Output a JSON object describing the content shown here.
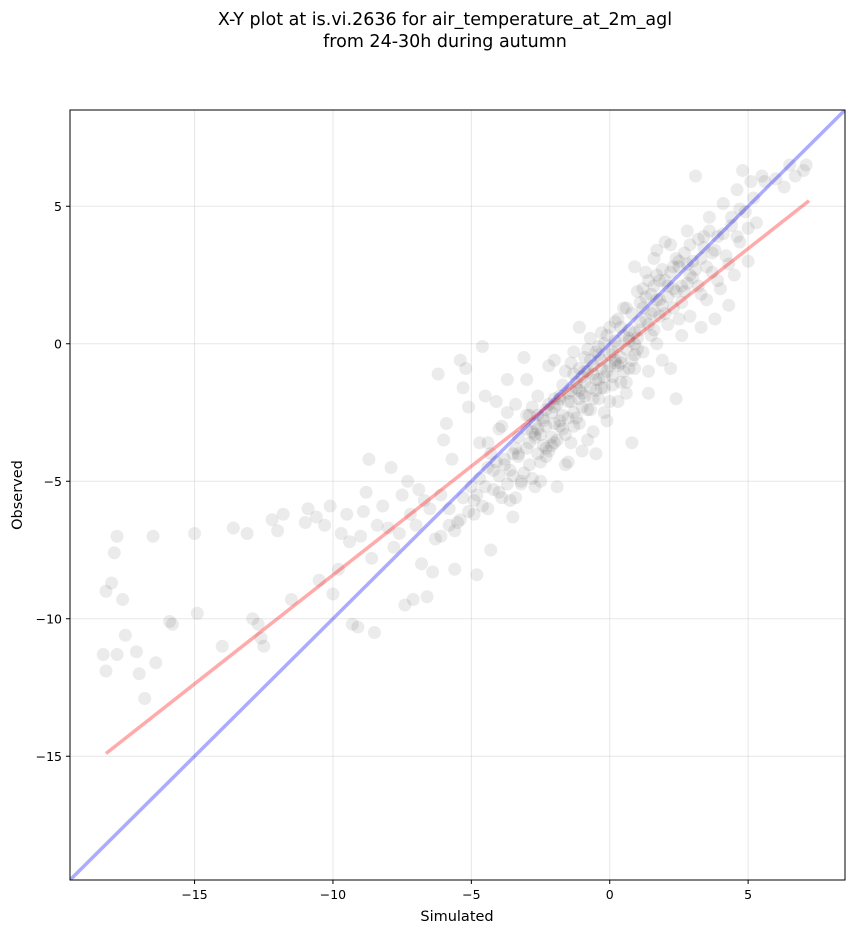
{
  "chart_data": {
    "type": "scatter",
    "title_line1": "X-Y plot at is.vi.2636 for air_temperature_at_2m_agl",
    "title_line2": "from 24-30h during autumn",
    "xlabel": "Simulated",
    "ylabel": "Observed",
    "xlim": [
      -19.5,
      8.5
    ],
    "ylim": [
      -19.5,
      8.5
    ],
    "xticks": [
      -15,
      -10,
      -5,
      0,
      5
    ],
    "xtick_labels": [
      "−15",
      "−10",
      "−5",
      "0",
      "5"
    ],
    "yticks": [
      -15,
      -10,
      -5,
      0,
      5
    ],
    "ytick_labels": [
      "−15",
      "−10",
      "−5",
      "0",
      "5"
    ],
    "grid": true,
    "point_color": "#000000",
    "point_alpha": 0.08,
    "identity_line": {
      "color": "#0000ff",
      "alpha": 0.33,
      "x": [
        -19.5,
        8.5
      ],
      "y": [
        -19.5,
        8.5
      ]
    },
    "fit_line": {
      "color": "#ff0000",
      "alpha": 0.33,
      "x": [
        -18.2,
        7.2
      ],
      "y": [
        -14.9,
        5.2
      ]
    },
    "points": [
      [
        -18.2,
        -9.0
      ],
      [
        -18.0,
        -8.7
      ],
      [
        -17.8,
        -7.0
      ],
      [
        -17.9,
        -7.6
      ],
      [
        -17.6,
        -9.3
      ],
      [
        -18.3,
        -11.3
      ],
      [
        -18.2,
        -11.9
      ],
      [
        -17.8,
        -11.3
      ],
      [
        -17.5,
        -10.6
      ],
      [
        -17.1,
        -11.2
      ],
      [
        -17.0,
        -12.0
      ],
      [
        -16.8,
        -12.9
      ],
      [
        -16.4,
        -11.6
      ],
      [
        -16.5,
        -7.0
      ],
      [
        -15.9,
        -10.1
      ],
      [
        -15.8,
        -10.2
      ],
      [
        -15.0,
        -6.9
      ],
      [
        -14.9,
        -9.8
      ],
      [
        -14.0,
        -11.0
      ],
      [
        -13.6,
        -6.7
      ],
      [
        -13.1,
        -6.9
      ],
      [
        -12.9,
        -10.0
      ],
      [
        -12.7,
        -10.2
      ],
      [
        -12.6,
        -10.7
      ],
      [
        -12.5,
        -11.0
      ],
      [
        -12.2,
        -6.4
      ],
      [
        -12.0,
        -6.8
      ],
      [
        -11.8,
        -6.2
      ],
      [
        -11.5,
        -9.3
      ],
      [
        -11.0,
        -6.5
      ],
      [
        -10.9,
        -6.0
      ],
      [
        -10.6,
        -6.3
      ],
      [
        -10.5,
        -8.6
      ],
      [
        -10.3,
        -6.6
      ],
      [
        -10.1,
        -5.9
      ],
      [
        -10.0,
        -9.1
      ],
      [
        -9.8,
        -8.2
      ],
      [
        -9.7,
        -6.9
      ],
      [
        -9.5,
        -6.2
      ],
      [
        -9.4,
        -7.2
      ],
      [
        -9.3,
        -10.2
      ],
      [
        -9.1,
        -10.3
      ],
      [
        -9.0,
        -7.0
      ],
      [
        -8.9,
        -6.1
      ],
      [
        -8.8,
        -5.4
      ],
      [
        -8.7,
        -4.2
      ],
      [
        -8.6,
        -7.8
      ],
      [
        -8.5,
        -10.5
      ],
      [
        -8.4,
        -6.6
      ],
      [
        -8.2,
        -5.9
      ],
      [
        -8.0,
        -6.7
      ],
      [
        -7.9,
        -4.5
      ],
      [
        -7.8,
        -7.4
      ],
      [
        -7.6,
        -6.9
      ],
      [
        -7.5,
        -5.5
      ],
      [
        -7.4,
        -9.5
      ],
      [
        -7.3,
        -5.0
      ],
      [
        -7.2,
        -6.2
      ],
      [
        -7.1,
        -9.3
      ],
      [
        -7.0,
        -6.6
      ],
      [
        -6.9,
        -5.3
      ],
      [
        -6.8,
        -8.0
      ],
      [
        -6.7,
        -5.7
      ],
      [
        -6.6,
        -9.2
      ],
      [
        -6.5,
        -6.0
      ],
      [
        -6.4,
        -8.3
      ],
      [
        -6.3,
        -7.1
      ],
      [
        -6.2,
        -1.1
      ],
      [
        -6.1,
        -5.5
      ],
      [
        -6.0,
        -3.5
      ],
      [
        -5.9,
        -2.9
      ],
      [
        -5.8,
        -6.0
      ],
      [
        -5.7,
        -4.2
      ],
      [
        -5.6,
        -8.2
      ],
      [
        -5.5,
        -6.5
      ],
      [
        -5.4,
        -0.6
      ],
      [
        -5.3,
        -1.6
      ],
      [
        -5.2,
        -0.9
      ],
      [
        -5.1,
        -2.3
      ],
      [
        -5.0,
        -5.2
      ],
      [
        -4.9,
        -6.2
      ],
      [
        -4.8,
        -8.4
      ],
      [
        -4.7,
        -3.6
      ],
      [
        -4.6,
        -0.1
      ],
      [
        -4.5,
        -1.9
      ],
      [
        -4.4,
        -6.0
      ],
      [
        -4.3,
        -7.5
      ],
      [
        -4.2,
        -4.6
      ],
      [
        -4.1,
        -2.1
      ],
      [
        -4.0,
        -5.4
      ],
      [
        -3.9,
        -3.0
      ],
      [
        -3.8,
        -4.4
      ],
      [
        -3.7,
        -1.3
      ],
      [
        -3.6,
        -5.7
      ],
      [
        -3.5,
        -6.3
      ],
      [
        -3.4,
        -2.2
      ],
      [
        -3.3,
        -4.0
      ],
      [
        -3.2,
        -5.1
      ],
      [
        -3.1,
        -0.5
      ],
      [
        -3.0,
        -3.8
      ],
      [
        -2.9,
        -2.6
      ],
      [
        -2.8,
        -4.9
      ],
      [
        -2.7,
        -3.3
      ],
      [
        -2.6,
        -1.9
      ],
      [
        -2.5,
        -5.0
      ],
      [
        -2.4,
        -2.8
      ],
      [
        -2.3,
        -4.1
      ],
      [
        -2.2,
        -0.8
      ],
      [
        -2.1,
        -3.4
      ],
      [
        -2.0,
        -2.3
      ],
      [
        -1.9,
        -5.2
      ],
      [
        -1.8,
        -3.0
      ],
      [
        -1.7,
        -1.5
      ],
      [
        -1.6,
        -4.4
      ],
      [
        -1.5,
        -2.1
      ],
      [
        -1.4,
        -3.6
      ],
      [
        -1.3,
        -0.3
      ],
      [
        -1.2,
        -2.7
      ],
      [
        -1.1,
        -1.7
      ],
      [
        -1.0,
        -3.9
      ],
      [
        -0.9,
        -1.0
      ],
      [
        -0.8,
        -2.4
      ],
      [
        -0.7,
        -0.6
      ],
      [
        -0.6,
        -3.2
      ],
      [
        -0.5,
        -1.3
      ],
      [
        -0.4,
        -2.0
      ],
      [
        -0.3,
        0.4
      ],
      [
        -0.2,
        -1.6
      ],
      [
        -0.1,
        -2.8
      ],
      [
        0.0,
        -0.4
      ],
      [
        0.1,
        -1.2
      ],
      [
        0.2,
        0.8
      ],
      [
        0.3,
        -2.1
      ],
      [
        0.4,
        -0.7
      ],
      [
        0.5,
        1.3
      ],
      [
        0.6,
        -1.4
      ],
      [
        0.7,
        0.2
      ],
      [
        0.8,
        -3.6
      ],
      [
        0.9,
        -0.9
      ],
      [
        1.0,
        1.9
      ],
      [
        1.1,
        0.5
      ],
      [
        1.2,
        -0.3
      ],
      [
        1.3,
        2.6
      ],
      [
        1.4,
        -1.0
      ],
      [
        1.5,
        1.1
      ],
      [
        1.6,
        3.1
      ],
      [
        1.7,
        0.0
      ],
      [
        1.8,
        1.6
      ],
      [
        1.9,
        -0.6
      ],
      [
        2.0,
        2.3
      ],
      [
        2.1,
        0.7
      ],
      [
        2.2,
        3.6
      ],
      [
        2.3,
        1.3
      ],
      [
        2.4,
        -2.0
      ],
      [
        2.5,
        2.8
      ],
      [
        2.6,
        0.3
      ],
      [
        2.7,
        1.9
      ],
      [
        2.8,
        4.1
      ],
      [
        2.9,
        1.0
      ],
      [
        3.0,
        3.0
      ],
      [
        3.1,
        6.1
      ],
      [
        3.2,
        2.1
      ],
      [
        3.3,
        0.6
      ],
      [
        3.4,
        3.5
      ],
      [
        3.5,
        1.6
      ],
      [
        3.6,
        4.6
      ],
      [
        3.7,
        2.6
      ],
      [
        3.8,
        0.9
      ],
      [
        3.9,
        3.9
      ],
      [
        4.0,
        2.0
      ],
      [
        4.1,
        5.1
      ],
      [
        4.2,
        3.2
      ],
      [
        4.3,
        1.4
      ],
      [
        4.4,
        4.3
      ],
      [
        4.5,
        2.5
      ],
      [
        4.6,
        5.6
      ],
      [
        4.7,
        3.7
      ],
      [
        4.8,
        6.3
      ],
      [
        4.9,
        4.8
      ],
      [
        5.0,
        3.0
      ],
      [
        5.1,
        5.9
      ],
      [
        5.3,
        4.4
      ],
      [
        5.5,
        6.1
      ],
      [
        6.3,
        5.7
      ],
      [
        6.5,
        6.5
      ],
      [
        6.7,
        6.1
      ],
      [
        7.0,
        6.3
      ],
      [
        7.1,
        6.5
      ],
      [
        -1.4,
        -2.1
      ],
      [
        -0.7,
        -1.6
      ],
      [
        0.3,
        -0.8
      ],
      [
        -2.6,
        -3.1
      ],
      [
        1.3,
        0.9
      ],
      [
        -3.1,
        -4.7
      ],
      [
        -0.2,
        -1.2
      ],
      [
        0.9,
        0.4
      ],
      [
        -1.8,
        -2.8
      ],
      [
        2.1,
        1.7
      ],
      [
        -3.8,
        -4.2
      ],
      [
        0.6,
        -0.2
      ],
      [
        -0.9,
        -1.9
      ],
      [
        1.6,
        1.2
      ],
      [
        -2.3,
        -2.4
      ],
      [
        0.1,
        -1.5
      ],
      [
        2.6,
        2.1
      ],
      [
        -4.2,
        -5.3
      ],
      [
        -1.1,
        -0.9
      ],
      [
        0.4,
        0.6
      ],
      [
        -1.6,
        -3.3
      ],
      [
        1.1,
        1.5
      ],
      [
        -2.9,
        -3.6
      ],
      [
        -0.4,
        -0.4
      ],
      [
        3.3,
        3.1
      ],
      [
        -3.5,
        -4.0
      ],
      [
        0.7,
        0.1
      ],
      [
        -1.3,
        -2.5
      ],
      [
        1.8,
        2.3
      ],
      [
        -2.0,
        -2.0
      ],
      [
        -0.6,
        -1.1
      ],
      [
        2.3,
        2.8
      ],
      [
        -4.6,
        -5.9
      ],
      [
        0.2,
        -0.6
      ],
      [
        -1.9,
        -3.5
      ],
      [
        1.4,
        0.7
      ],
      [
        -2.7,
        -2.9
      ],
      [
        -0.1,
        0.3
      ],
      [
        2.9,
        3.6
      ],
      [
        -3.3,
        -3.4
      ],
      [
        0.8,
        1.1
      ],
      [
        -1.0,
        -2.3
      ],
      [
        1.9,
        1.4
      ],
      [
        -2.5,
        -4.3
      ],
      [
        -0.3,
        -0.9
      ],
      [
        3.6,
        4.1
      ],
      [
        -4.0,
        -4.8
      ],
      [
        0.5,
        -1.0
      ],
      [
        -1.5,
        -1.8
      ],
      [
        1.2,
        2.0
      ],
      [
        -2.2,
        -3.9
      ],
      [
        -0.8,
        -0.2
      ],
      [
        2.4,
        1.9
      ],
      [
        -3.6,
        -4.6
      ],
      [
        0.0,
        -2.1
      ],
      [
        -1.2,
        -1.4
      ],
      [
        1.7,
        2.5
      ],
      [
        -2.8,
        -3.2
      ],
      [
        -0.5,
        -1.7
      ],
      [
        3.0,
        2.4
      ],
      [
        -4.4,
        -4.5
      ],
      [
        0.9,
        -0.4
      ],
      [
        -1.7,
        -2.6
      ],
      [
        1.5,
        1.8
      ],
      [
        -2.4,
        -2.7
      ],
      [
        -0.2,
        0.0
      ],
      [
        2.7,
        3.3
      ],
      [
        -3.2,
        -5.0
      ],
      [
        0.3,
        0.9
      ],
      [
        -1.0,
        -1.2
      ],
      [
        2.0,
        1.1
      ],
      [
        -2.1,
        -3.7
      ],
      [
        -0.7,
        -2.4
      ],
      [
        3.4,
        3.9
      ],
      [
        -3.9,
        -5.6
      ],
      [
        0.6,
        -1.8
      ],
      [
        -1.4,
        -0.7
      ],
      [
        1.0,
        0.2
      ],
      [
        -2.6,
        -4.0
      ],
      [
        -0.4,
        -1.3
      ],
      [
        2.2,
        2.6
      ],
      [
        -3.0,
        -2.6
      ],
      [
        0.1,
        -0.3
      ],
      [
        -1.8,
        -1.9
      ],
      [
        1.6,
        0.5
      ],
      [
        -2.3,
        -3.0
      ],
      [
        -0.9,
        -0.5
      ],
      [
        2.8,
        2.2
      ],
      [
        -4.8,
        -5.5
      ],
      [
        0.4,
        -1.4
      ],
      [
        -1.3,
        -3.0
      ],
      [
        1.3,
        1.7
      ],
      [
        -2.0,
        -3.6
      ],
      [
        -0.6,
        -0.8
      ],
      [
        3.7,
        3.3
      ],
      [
        -3.4,
        -3.8
      ],
      [
        0.7,
        0.5
      ],
      [
        -1.1,
        -2.0
      ],
      [
        2.5,
        3.0
      ],
      [
        -2.9,
        -4.4
      ],
      [
        -0.3,
        -1.6
      ],
      [
        4.1,
        4.0
      ],
      [
        -4.3,
        -4.0
      ],
      [
        0.2,
        -0.7
      ],
      [
        -1.6,
        -1.0
      ],
      [
        1.4,
        2.3
      ],
      [
        -2.2,
        -2.2
      ],
      [
        0.0,
        0.6
      ],
      [
        2.9,
        2.5
      ],
      [
        -3.7,
        -5.1
      ],
      [
        0.8,
        -0.6
      ],
      [
        -1.5,
        -2.7
      ],
      [
        1.8,
        1.0
      ],
      [
        -2.5,
        -3.3
      ],
      [
        -0.8,
        -1.0
      ],
      [
        3.2,
        3.8
      ],
      [
        -5.1,
        -6.1
      ],
      [
        0.5,
        0.3
      ],
      [
        -1.2,
        -1.6
      ],
      [
        2.1,
        2.1
      ],
      [
        -2.7,
        -3.4
      ],
      [
        -0.5,
        -0.3
      ],
      [
        4.4,
        4.6
      ],
      [
        -4.1,
        -4.3
      ],
      [
        -0.1,
        -1.0
      ],
      [
        -1.9,
        -2.2
      ],
      [
        1.1,
        0.8
      ],
      [
        -2.4,
        -3.7
      ],
      [
        -0.2,
        -2.5
      ],
      [
        2.6,
        1.5
      ],
      [
        -3.3,
        -4.1
      ],
      [
        0.6,
        1.3
      ],
      [
        -1.0,
        -1.8
      ],
      [
        1.7,
        1.6
      ],
      [
        -2.1,
        -2.5
      ],
      [
        -0.7,
        0.2
      ],
      [
        3.5,
        2.8
      ],
      [
        -4.7,
        -4.9
      ],
      [
        0.3,
        -0.1
      ],
      [
        -1.7,
        -3.1
      ],
      [
        1.5,
        0.3
      ],
      [
        -2.8,
        -2.3
      ],
      [
        -0.4,
        -0.1
      ],
      [
        2.4,
        3.1
      ],
      [
        -5.4,
        -6.4
      ],
      [
        0.9,
        0.0
      ],
      [
        -1.3,
        -1.1
      ],
      [
        1.9,
        2.7
      ],
      [
        -3.0,
        -3.1
      ],
      [
        -0.6,
        -2.0
      ],
      [
        3.1,
        2.7
      ],
      [
        -4.5,
        -5.2
      ],
      [
        0.2,
        0.1
      ],
      [
        -1.1,
        -2.9
      ],
      [
        1.2,
        1.3
      ],
      [
        -2.6,
        -2.6
      ],
      [
        -0.3,
        -0.6
      ],
      [
        3.8,
        3.4
      ],
      [
        -5.6,
        -6.8
      ],
      [
        0.7,
        -0.9
      ],
      [
        -1.4,
        -1.7
      ],
      [
        2.3,
        2.0
      ],
      [
        -2.3,
        -3.8
      ],
      [
        -0.9,
        -1.4
      ],
      [
        4.7,
        4.9
      ],
      [
        -4.9,
        -5.7
      ],
      [
        0.4,
        -0.5
      ],
      [
        -1.8,
        -2.0
      ],
      [
        1.6,
        2.1
      ],
      [
        -2.0,
        -2.9
      ],
      [
        0.0,
        -0.8
      ],
      [
        2.8,
        2.9
      ],
      [
        -3.5,
        -4.8
      ],
      [
        -5.8,
        -6.6
      ],
      [
        -6.1,
        -7.0
      ],
      [
        -5.3,
        -5.6
      ],
      [
        -4.0,
        -3.1
      ],
      [
        -3.7,
        -2.5
      ],
      [
        -4.4,
        -3.6
      ],
      [
        5.2,
        5.3
      ],
      [
        5.6,
        5.9
      ],
      [
        4.3,
        2.9
      ],
      [
        3.9,
        2.3
      ],
      [
        4.6,
        3.9
      ],
      [
        5.0,
        4.2
      ],
      [
        6.0,
        6.0
      ],
      [
        2.5,
        0.9
      ],
      [
        3.3,
        1.8
      ],
      [
        1.0,
        -0.2
      ],
      [
        -0.8,
        -3.5
      ],
      [
        -1.5,
        -4.3
      ],
      [
        -2.7,
        -5.2
      ],
      [
        -3.4,
        -5.6
      ],
      [
        0.9,
        2.8
      ],
      [
        1.7,
        3.4
      ],
      [
        2.0,
        3.7
      ],
      [
        -1.1,
        0.6
      ],
      [
        -2.0,
        -0.6
      ],
      [
        -3.0,
        -1.3
      ],
      [
        1.4,
        -1.8
      ],
      [
        2.2,
        -0.9
      ],
      [
        -0.5,
        -4.0
      ]
    ]
  }
}
